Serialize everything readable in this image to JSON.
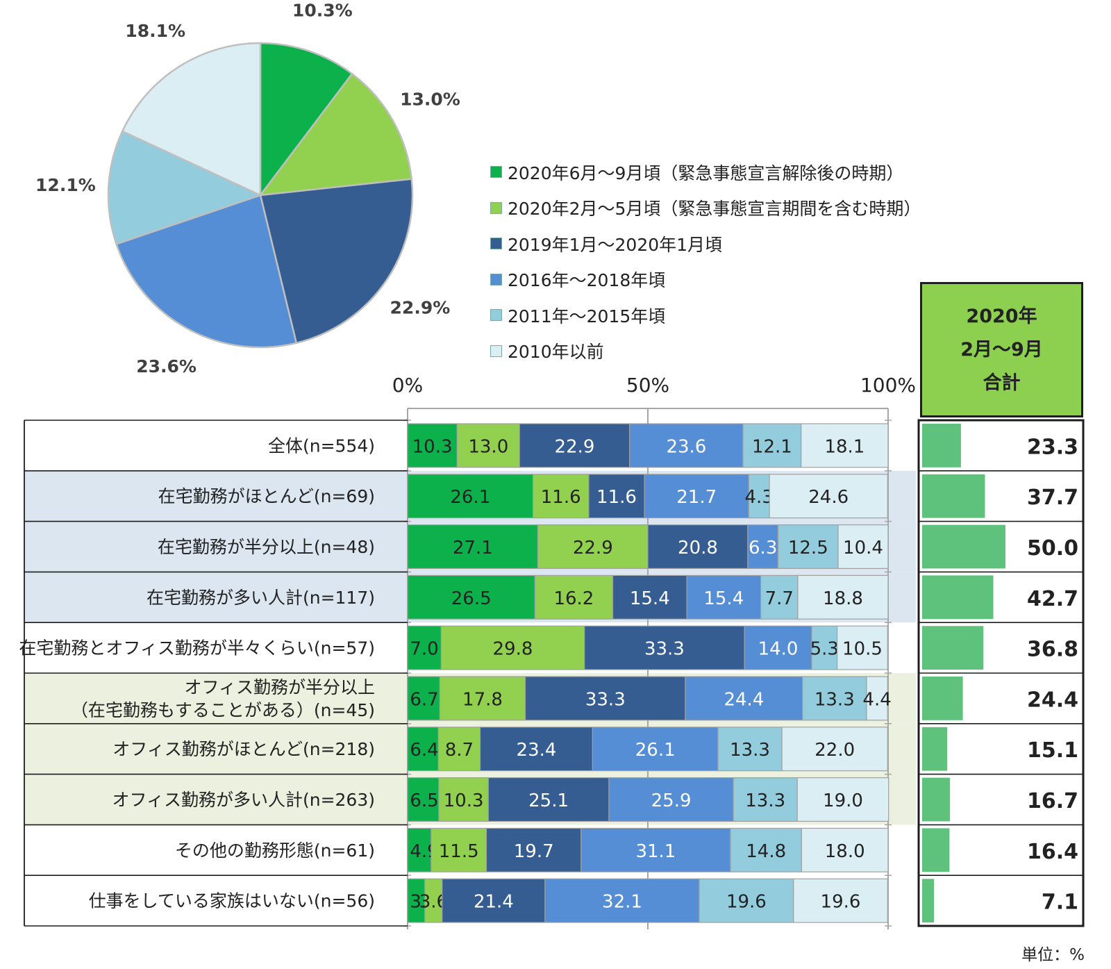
{
  "chart_data": [
    {
      "type": "pie",
      "labels": [
        "2020年6月～9月頃（緊急事態宣言解除後の時期）",
        "2020年2月～5月頃（緊急事態宣言期間を含む時期）",
        "2019年1月～2020年1月頃",
        "2016年～2018年頃",
        "2011年～2015年頃",
        "2010年以前"
      ],
      "values": [
        10.3,
        13.0,
        22.9,
        23.6,
        12.1,
        18.1
      ],
      "value_labels": [
        "10.3%",
        "13.0%",
        "22.9%",
        "23.6%",
        "12.1%",
        "18.1%"
      ]
    },
    {
      "type": "bar",
      "stacked": true,
      "orientation": "horizontal",
      "x_ticks": [
        "0%",
        "50%",
        "100%"
      ],
      "xlim": [
        0,
        100
      ],
      "categories": [
        "全体(n=554)",
        "在宅勤務がほとんど(n=69)",
        "在宅勤務が半分以上(n=48)",
        "在宅勤務が多い人計(n=117)",
        "在宅勤務とオフィス勤務が半々くらい(n=57)",
        "オフィス勤務が半分以上\n（在宅勤務もすることがある）(n=45)",
        "オフィス勤務がほとんど(n=218)",
        "オフィス勤務が多い人計(n=263)",
        "その他の勤務形態(n=61)",
        "仕事をしている家族はいない(n=56)"
      ],
      "series": [
        {
          "name": "2020年6月～9月頃（緊急事態宣言解除後の時期）",
          "values": [
            10.3,
            26.1,
            27.1,
            26.5,
            7.0,
            6.7,
            6.4,
            6.5,
            4.9,
            3.6
          ]
        },
        {
          "name": "2020年2月～5月頃（緊急事態宣言期間を含む時期）",
          "values": [
            13.0,
            11.6,
            22.9,
            16.2,
            29.8,
            17.8,
            8.7,
            10.3,
            11.5,
            3.6
          ]
        },
        {
          "name": "2019年1月～2020年1月頃",
          "values": [
            22.9,
            11.6,
            20.8,
            15.4,
            33.3,
            33.3,
            23.4,
            25.1,
            19.7,
            21.4
          ]
        },
        {
          "name": "2016年～2018年頃",
          "values": [
            23.6,
            21.7,
            6.3,
            15.4,
            14.0,
            24.4,
            26.1,
            25.9,
            31.1,
            32.1
          ]
        },
        {
          "name": "2011年～2015年頃",
          "values": [
            12.1,
            4.3,
            12.5,
            7.7,
            5.3,
            13.3,
            13.3,
            13.3,
            14.8,
            19.6
          ]
        },
        {
          "name": "2010年以前",
          "values": [
            18.1,
            24.6,
            10.4,
            18.8,
            10.5,
            4.4,
            22.0,
            19.0,
            18.0,
            19.6
          ]
        }
      ]
    },
    {
      "type": "bar",
      "orientation": "horizontal",
      "title_lines": [
        "2020年",
        "2月～9月",
        "合計"
      ],
      "values": [
        23.3,
        37.7,
        50.0,
        42.7,
        36.8,
        24.4,
        15.1,
        16.7,
        16.4,
        7.1
      ],
      "value_labels": [
        "23.3",
        "37.7",
        "50.0",
        "42.7",
        "36.8",
        "24.4",
        "15.1",
        "16.7",
        "16.4",
        "7.1"
      ]
    }
  ],
  "colors": {
    "series": [
      "#0db14b",
      "#92d050",
      "#355d91",
      "#558ed5",
      "#93cddd",
      "#dbeef4"
    ],
    "total_bar": "#5ec27d",
    "header_bg": "#8dd050",
    "row_bg": [
      "#ffffff",
      "#dce6f1",
      "#dce6f1",
      "#dce6f1",
      "#ffffff",
      "#ebf1de",
      "#ebf1de",
      "#ebf1de",
      "#ffffff",
      "#ffffff"
    ]
  },
  "unit_label": "単位：%"
}
